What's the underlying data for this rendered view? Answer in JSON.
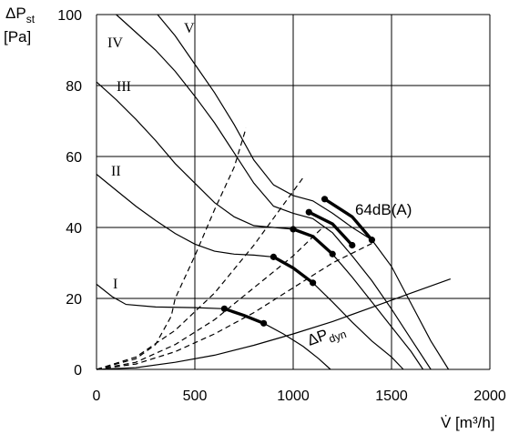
{
  "chart_data": {
    "type": "line",
    "xlabel": "V̇ [m³/h]",
    "ylabel_main": "ΔP",
    "ylabel_sub": "st",
    "ylabel_unit": "[Pa]",
    "xlim": [
      0,
      2000
    ],
    "ylim": [
      0,
      100
    ],
    "xticks": [
      "0",
      "500",
      "1000",
      "1500",
      "2000"
    ],
    "yticks": [
      "0",
      "20",
      "40",
      "60",
      "80",
      "100"
    ],
    "xtick_values": [
      0,
      500,
      1000,
      1500,
      2000
    ],
    "ytick_values": [
      0,
      20,
      40,
      60,
      80,
      100
    ],
    "grid": true,
    "series": [
      {
        "name": "I",
        "points": [
          [
            0,
            24
          ],
          [
            80,
            20.5
          ],
          [
            150,
            18.3
          ],
          [
            300,
            17.6
          ],
          [
            500,
            17.4
          ],
          [
            650,
            17.1
          ],
          [
            750,
            15.2
          ],
          [
            850,
            13
          ],
          [
            950,
            10
          ],
          [
            1050,
            6.5
          ],
          [
            1130,
            3
          ],
          [
            1190,
            0
          ]
        ]
      },
      {
        "name": "II",
        "points": [
          [
            0,
            55
          ],
          [
            100,
            50.5
          ],
          [
            200,
            46
          ],
          [
            300,
            42
          ],
          [
            400,
            38.3
          ],
          [
            500,
            35.3
          ],
          [
            600,
            33.3
          ],
          [
            700,
            32.5
          ],
          [
            800,
            32.2
          ],
          [
            900,
            31.7
          ],
          [
            1000,
            28.6
          ],
          [
            1100,
            24.4
          ],
          [
            1200,
            19
          ],
          [
            1300,
            13.3
          ],
          [
            1400,
            8
          ],
          [
            1500,
            3.5
          ],
          [
            1560,
            0
          ]
        ]
      },
      {
        "name": "III",
        "points": [
          [
            0,
            81
          ],
          [
            100,
            76
          ],
          [
            200,
            70.5
          ],
          [
            300,
            64.5
          ],
          [
            400,
            58
          ],
          [
            500,
            52.5
          ],
          [
            600,
            47
          ],
          [
            700,
            43
          ],
          [
            800,
            40.5
          ],
          [
            900,
            40
          ],
          [
            1000,
            39.5
          ],
          [
            1100,
            37.5
          ],
          [
            1200,
            32.5
          ],
          [
            1300,
            26
          ],
          [
            1400,
            19
          ],
          [
            1500,
            12
          ],
          [
            1600,
            5
          ],
          [
            1660,
            0
          ]
        ]
      },
      {
        "name": "IV",
        "points": [
          [
            100,
            100
          ],
          [
            200,
            95
          ],
          [
            300,
            90
          ],
          [
            400,
            84
          ],
          [
            500,
            77
          ],
          [
            600,
            69.5
          ],
          [
            700,
            61
          ],
          [
            800,
            52.5
          ],
          [
            900,
            46
          ],
          [
            1000,
            44
          ],
          [
            1100,
            42.5
          ],
          [
            1200,
            38.5
          ],
          [
            1300,
            32
          ],
          [
            1400,
            25
          ],
          [
            1500,
            17
          ],
          [
            1600,
            8.5
          ],
          [
            1700,
            0
          ]
        ]
      },
      {
        "name": "V",
        "points": [
          [
            310,
            100
          ],
          [
            400,
            94
          ],
          [
            500,
            86
          ],
          [
            600,
            78
          ],
          [
            700,
            69
          ],
          [
            800,
            59
          ],
          [
            900,
            52
          ],
          [
            1000,
            49
          ],
          [
            1100,
            47.5
          ],
          [
            1200,
            44
          ],
          [
            1300,
            40
          ],
          [
            1400,
            36.5
          ],
          [
            1500,
            29
          ],
          [
            1600,
            18.5
          ],
          [
            1700,
            8
          ],
          [
            1790,
            0
          ]
        ]
      }
    ],
    "dashed_series": [
      {
        "points": [
          [
            0,
            0
          ],
          [
            200,
            3
          ],
          [
            300,
            7
          ],
          [
            380,
            15
          ],
          [
            400,
            20
          ],
          [
            500,
            32
          ],
          [
            600,
            45
          ],
          [
            700,
            57
          ],
          [
            760,
            68
          ]
        ]
      },
      {
        "points": [
          [
            0,
            0
          ],
          [
            200,
            3.5
          ],
          [
            400,
            11
          ],
          [
            600,
            21.5
          ],
          [
            800,
            35
          ],
          [
            1050,
            54
          ]
        ]
      },
      {
        "points": [
          [
            0,
            0
          ],
          [
            200,
            2
          ],
          [
            400,
            7
          ],
          [
            600,
            14
          ],
          [
            800,
            23
          ],
          [
            1000,
            32
          ],
          [
            1150,
            40
          ]
        ]
      },
      {
        "points": [
          [
            0,
            0
          ],
          [
            200,
            1.5
          ],
          [
            400,
            5
          ],
          [
            600,
            10
          ],
          [
            800,
            16
          ],
          [
            1000,
            23
          ],
          [
            1200,
            30
          ],
          [
            1400,
            35.5
          ]
        ]
      }
    ],
    "dyn_series": {
      "name": "ΔP dyn",
      "points": [
        [
          0,
          0
        ],
        [
          200,
          0.5
        ],
        [
          400,
          2
        ],
        [
          600,
          4
        ],
        [
          800,
          6.8
        ],
        [
          1000,
          10
        ],
        [
          1200,
          13.5
        ],
        [
          1400,
          17.5
        ],
        [
          1600,
          21.5
        ],
        [
          1800,
          25.5
        ]
      ]
    },
    "highlight_segments": [
      [
        [
          650,
          17.1
        ],
        [
          750,
          15.2
        ],
        [
          850,
          13
        ]
      ],
      [
        [
          900,
          31.7
        ],
        [
          1000,
          28.6
        ],
        [
          1100,
          24.4
        ]
      ],
      [
        [
          1000,
          39.5
        ],
        [
          1100,
          37.5
        ],
        [
          1200,
          32.5
        ]
      ],
      [
        [
          1080,
          44.3
        ],
        [
          1200,
          41
        ],
        [
          1300,
          35
        ]
      ],
      [
        [
          1160,
          48
        ],
        [
          1300,
          43
        ],
        [
          1400,
          36.5
        ]
      ]
    ],
    "highlight_points": [
      [
        650,
        17.1
      ],
      [
        850,
        13
      ],
      [
        900,
        31.7
      ],
      [
        1100,
        24.4
      ],
      [
        1000,
        39.5
      ],
      [
        1200,
        32.5
      ],
      [
        1080,
        44.3
      ],
      [
        1300,
        35
      ],
      [
        1160,
        48
      ],
      [
        1400,
        36.5
      ]
    ],
    "annotations": {
      "db_label": "64dB(A)",
      "dyn_main": "ΔP",
      "dyn_sub": "dyn"
    }
  }
}
